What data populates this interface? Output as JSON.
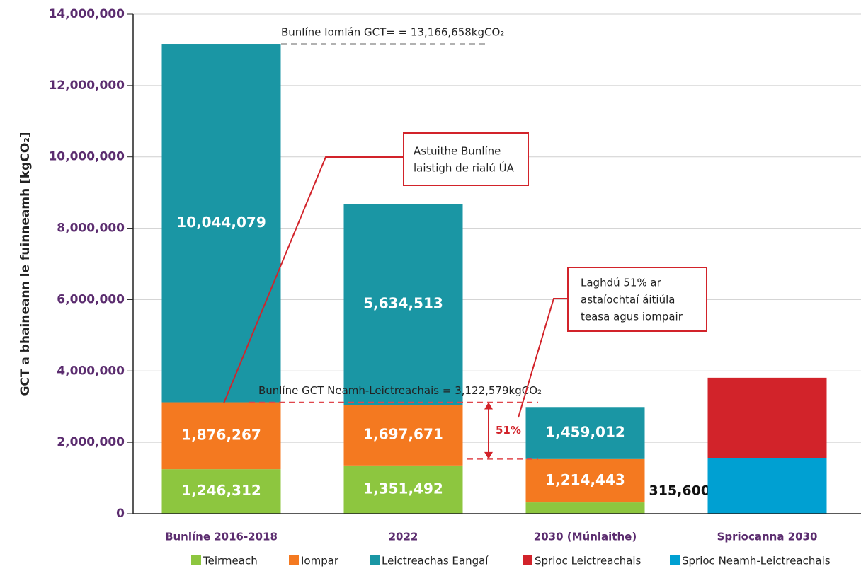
{
  "chart_data": {
    "type": "stacked_bar",
    "ylabel": "GCT a bhaineann le fuinneamh  [kgCO₂]",
    "categories": [
      "Bunlíne 2016-2018",
      "2022",
      "2030 (Múnlaithe)",
      "Spriocanna 2030"
    ],
    "series": [
      {
        "name": "Teirmeach",
        "color": "#8dc63f",
        "values": [
          1246312,
          1351492,
          315600,
          null
        ],
        "value_labels": [
          "1,246,312",
          "1,351,492",
          "315,600",
          null
        ]
      },
      {
        "name": "Iompar",
        "color": "#f47920",
        "values": [
          1876267,
          1697671,
          1214443,
          null
        ],
        "value_labels": [
          "1,876,267",
          "1,697,671",
          "1,214,443",
          null
        ]
      },
      {
        "name": "Leictreachas Eangaí",
        "color": "#1a96a4",
        "values": [
          10044079,
          5634513,
          1459012,
          null
        ],
        "value_labels": [
          "10,044,079",
          "5,634,513",
          "1,459,012",
          null
        ]
      },
      {
        "name": "Sprioc Neamh-Leictreachais",
        "color": "#00a0d2",
        "values": [
          null,
          null,
          null,
          1560000
        ]
      },
      {
        "name": "Sprioc Leictreachais",
        "color": "#d2232a",
        "values": [
          null,
          null,
          null,
          2250000
        ]
      }
    ],
    "legend_order": [
      0,
      1,
      2,
      4,
      3
    ],
    "ylim": [
      0,
      14000000
    ],
    "yticks": [
      {
        "value": 0,
        "label": "0"
      },
      {
        "value": 2000000,
        "label": "2,000,000"
      },
      {
        "value": 4000000,
        "label": "4,000,000"
      },
      {
        "value": 6000000,
        "label": "6,000,000"
      },
      {
        "value": 8000000,
        "label": "8,000,000"
      },
      {
        "value": 10000000,
        "label": "10,000,000"
      },
      {
        "value": 12000000,
        "label": "12,000,000"
      },
      {
        "value": 14000000,
        "label": "14,000,000"
      }
    ],
    "grid": true,
    "reference_lines": [
      {
        "value": 13166658,
        "label": "Bunlíne Iomlán GCT= = 13,166,658kgCO₂",
        "color": "#999999"
      },
      {
        "value": 3122579,
        "label": "Bunlíne GCT Neamh-Leictreachais = 3,122,579kgCO₂",
        "color": "#e0474c"
      },
      {
        "value": 1530043,
        "color": "#e0474c"
      }
    ],
    "arrow": {
      "from": 3122579,
      "to": 1530043,
      "label": "51%"
    },
    "callouts": [
      {
        "lines": [
          "Astuithe Bunlíne",
          "laistigh de rialú ÚA"
        ]
      },
      {
        "lines": [
          "Laghdú 51% ar",
          "astaíochtaí áitiúla",
          "teasa agus iompair"
        ]
      }
    ]
  }
}
